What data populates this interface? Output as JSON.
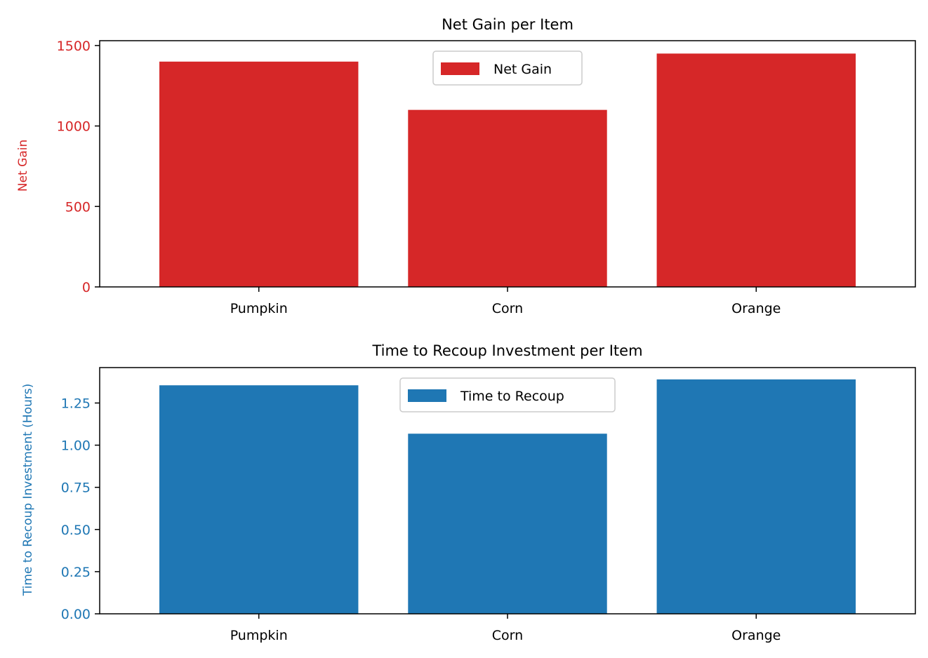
{
  "chart_data": [
    {
      "type": "bar",
      "title": "Net Gain per Item",
      "xlabel": "",
      "ylabel": "Net Gain",
      "categories": [
        "Pumpkin",
        "Corn",
        "Orange"
      ],
      "series": [
        {
          "name": "Net Gain",
          "values": [
            1400,
            1100,
            1450
          ]
        }
      ],
      "ylim": [
        0,
        1530
      ],
      "yticks": [
        0,
        500,
        1000,
        1500
      ],
      "ytick_labels": [
        "0",
        "500",
        "1000",
        "1500"
      ],
      "grid": false,
      "legend": "upper center",
      "colors": {
        "bar": "#d62728",
        "ylabel": "#d62728",
        "yticks": "#d62728"
      }
    },
    {
      "type": "bar",
      "title": "Time to Recoup Investment per Item",
      "xlabel": "",
      "ylabel": "Time to Recoup Investment (Hours)",
      "categories": [
        "Pumpkin",
        "Corn",
        "Orange"
      ],
      "series": [
        {
          "name": "Time to Recoup",
          "values": [
            1.355,
            1.068,
            1.39
          ]
        }
      ],
      "ylim": [
        0,
        1.46
      ],
      "yticks": [
        0,
        0.25,
        0.5,
        0.75,
        1.0,
        1.25
      ],
      "ytick_labels": [
        "0.00",
        "0.25",
        "0.50",
        "0.75",
        "1.00",
        "1.25"
      ],
      "grid": false,
      "legend": "upper center",
      "colors": {
        "bar": "#1f77b4",
        "ylabel": "#1f77b4",
        "yticks": "#1f77b4"
      }
    }
  ]
}
